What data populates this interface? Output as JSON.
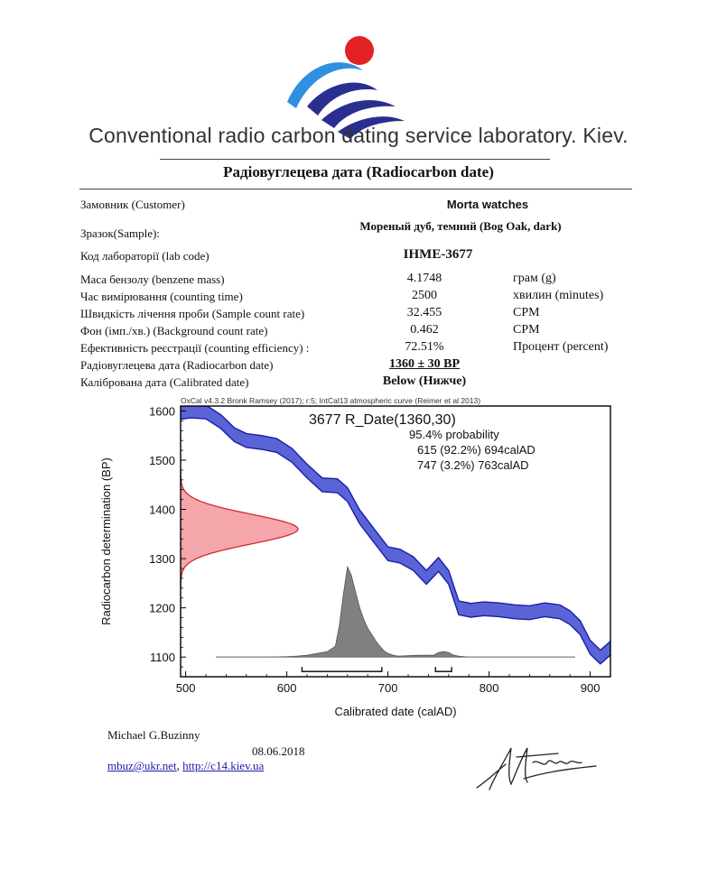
{
  "header": {
    "lab_name": "Conventional radio carbon dating service laboratory. Kiev.",
    "title": "Радіовуглецева дата (Radiocarbon date)"
  },
  "fields": {
    "customer": {
      "label": "Замовник (Customer)",
      "value": "Morta watches"
    },
    "sample": {
      "label": "Зразок(Sample):",
      "value": "Мореный дуб, темний (Bog Oak, dark)"
    },
    "lab_code": {
      "label": "Код лабораторії (lab code)",
      "value": "IHME-3677"
    },
    "benzene": {
      "label": "Маса бензолу (benzene mass)",
      "value": "4.1748",
      "unit": "грам (g)"
    },
    "counting": {
      "label": "Час вимірювання (counting time)",
      "value": "2500",
      "unit": "хвилин (minutes)"
    },
    "sample_rate": {
      "label": "Швидкість лічення проби (Sample count rate)",
      "value": "32.455",
      "unit": "CPM"
    },
    "background": {
      "label": "Фон (імп./хв.) (Background count rate)",
      "value": "0.462",
      "unit": "CPM"
    },
    "efficiency": {
      "label": "Ефективність реєстрації (counting efficiency) :",
      "value": "72.51%",
      "unit": "Процент (percent)"
    },
    "rc_date": {
      "label": "Радіовуглецева дата (Radiocarbon date)",
      "value": "1360 ± 30 BP"
    },
    "cal_date": {
      "label": "Калібрована дата (Calibrated date)",
      "value": "Below (Нижче)"
    }
  },
  "chart_data": {
    "type": "area",
    "header_note": "OxCal v4.3.2 Bronk Ramsey (2017); r:5; IntCal13 atmospheric curve (Reimer et al 2013)",
    "title": "3677 R_Date(1360,30)",
    "probability_label": "95.4% probability",
    "ranges": [
      {
        "text": "615 (92.2%) 694calAD",
        "from": 615,
        "to": 694
      },
      {
        "text": "747 (3.2%) 763calAD",
        "from": 747,
        "to": 763
      }
    ],
    "xlabel": "Calibrated date (calAD)",
    "ylabel": "Radiocarbon determination (BP)",
    "xlim": [
      495,
      920
    ],
    "ylim": [
      1060,
      1610
    ],
    "xticks": [
      500,
      600,
      700,
      800,
      900
    ],
    "yticks": [
      1100,
      1200,
      1300,
      1400,
      1500,
      1600
    ],
    "calibration_curve": {
      "x": [
        495,
        505,
        520,
        535,
        548,
        560,
        575,
        590,
        605,
        620,
        635,
        650,
        660,
        672,
        685,
        700,
        712,
        725,
        738,
        750,
        760,
        770,
        782,
        795,
        810,
        825,
        840,
        855,
        870,
        880,
        890,
        900,
        910,
        920
      ],
      "y": [
        1597,
        1600,
        1598,
        1578,
        1552,
        1540,
        1536,
        1530,
        1510,
        1478,
        1450,
        1448,
        1430,
        1385,
        1350,
        1310,
        1305,
        1290,
        1262,
        1288,
        1262,
        1200,
        1195,
        1198,
        1196,
        1192,
        1190,
        1196,
        1192,
        1180,
        1160,
        1120,
        1100,
        1118
      ],
      "halfwidth": 14
    },
    "measurement": {
      "mean": 1360,
      "sigma": 30
    },
    "posterior": {
      "x": [
        530,
        580,
        600,
        610,
        620,
        630,
        640,
        648,
        652,
        656,
        660,
        664,
        668,
        672,
        676,
        680,
        684,
        688,
        692,
        696,
        700,
        705,
        710,
        720,
        730,
        740,
        745,
        750,
        755,
        760,
        765,
        770,
        780,
        800,
        850,
        885
      ],
      "density": [
        0,
        0,
        0.005,
        0.01,
        0.02,
        0.04,
        0.06,
        0.12,
        0.35,
        0.7,
        1.0,
        0.9,
        0.72,
        0.55,
        0.42,
        0.32,
        0.25,
        0.18,
        0.12,
        0.07,
        0.04,
        0.02,
        0.01,
        0.015,
        0.02,
        0.02,
        0.02,
        0.05,
        0.06,
        0.05,
        0.02,
        0.01,
        0,
        0,
        0,
        0
      ]
    }
  },
  "footer": {
    "name": "Michael G.Buzinny",
    "date": "08.06.2018",
    "email": "mbuz@ukr.net",
    "separator": ", ",
    "website": "http://c14.kiev.ua"
  },
  "colors": {
    "curve": "#5a64d6",
    "curve_edge": "#1c1ca8",
    "measurement_fill": "#f4a6aa",
    "measurement_edge": "#d22a34",
    "posterior": "#808080",
    "logo_red": "#e32226",
    "logo_blue": "#2a2f8f",
    "logo_light_blue": "#2f8fe0"
  }
}
